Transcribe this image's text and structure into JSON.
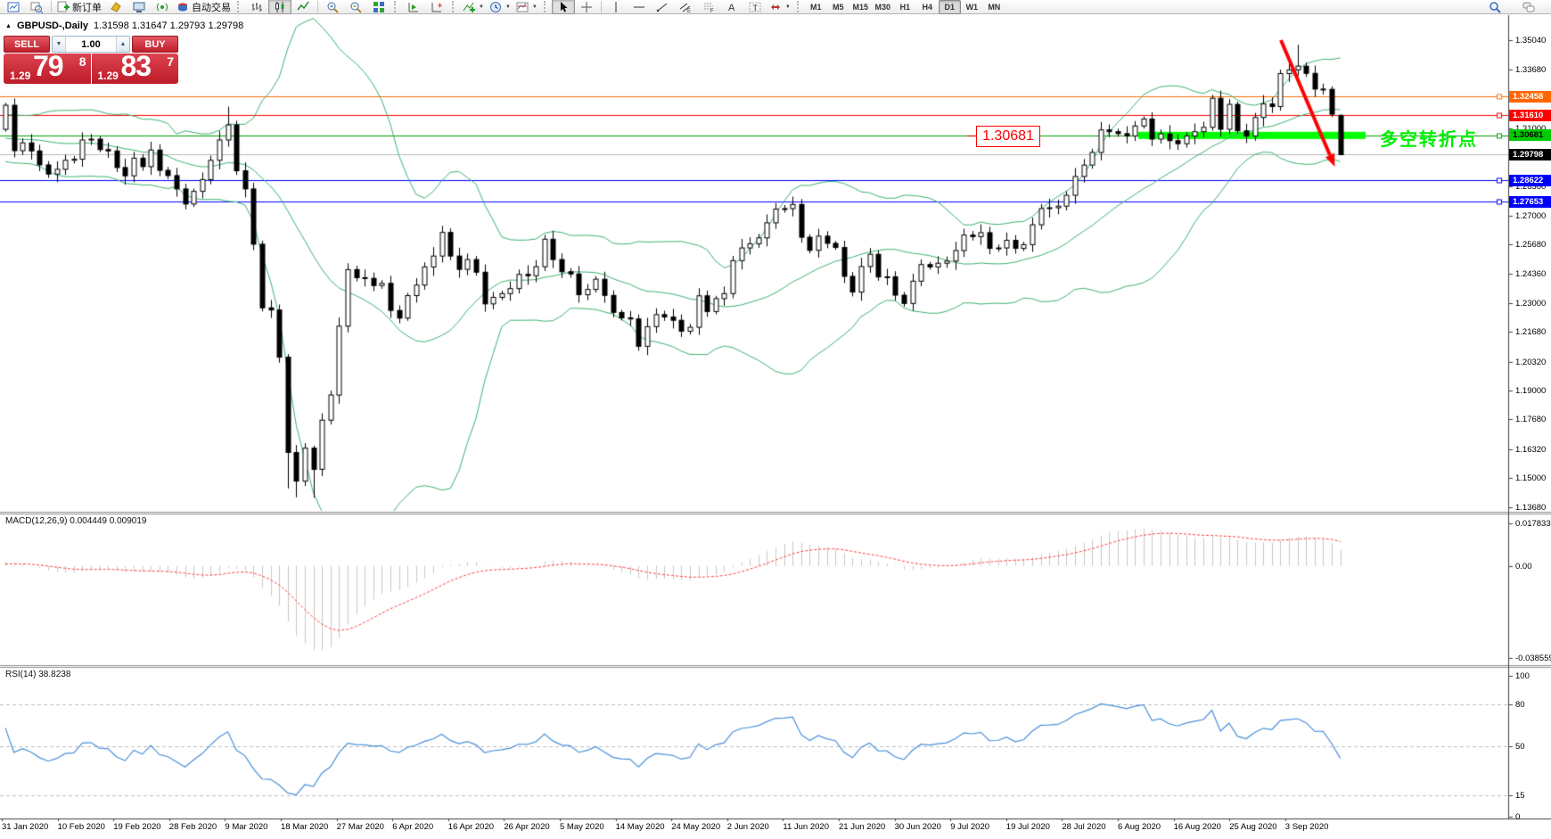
{
  "toolbar": {
    "left_items": [
      {
        "name": "new-chart",
        "type": "btn"
      },
      {
        "name": "profiles",
        "type": "btn"
      },
      {
        "type": "sep"
      },
      {
        "name": "new-order",
        "type": "btn",
        "label": "新订单"
      },
      {
        "name": "metaeditor",
        "type": "btn"
      },
      {
        "name": "terminal",
        "type": "btn"
      },
      {
        "name": "signals",
        "type": "btn"
      },
      {
        "name": "autotrading",
        "type": "btn",
        "label": "自动交易"
      },
      {
        "type": "grip"
      },
      {
        "name": "bar-chart",
        "type": "btn"
      },
      {
        "name": "candle-chart",
        "type": "btn",
        "active": true
      },
      {
        "name": "line-chart",
        "type": "btn"
      },
      {
        "type": "sep"
      },
      {
        "name": "zoom-in",
        "type": "btn"
      },
      {
        "name": "zoom-out",
        "type": "btn"
      },
      {
        "name": "tile-windows",
        "type": "btn"
      },
      {
        "type": "grip"
      },
      {
        "name": "auto-scroll",
        "type": "btn"
      },
      {
        "name": "chart-shift",
        "type": "btn"
      },
      {
        "type": "grip"
      },
      {
        "name": "indicators",
        "type": "btn",
        "dropdown": true
      },
      {
        "name": "periods",
        "type": "btn",
        "dropdown": true
      },
      {
        "name": "templates",
        "type": "btn",
        "dropdown": true
      },
      {
        "type": "grip"
      },
      {
        "name": "cursor",
        "type": "btn",
        "active": true
      },
      {
        "name": "crosshair",
        "type": "btn"
      },
      {
        "type": "sep"
      },
      {
        "name": "vertical-line",
        "type": "btn"
      },
      {
        "name": "horizontal-line",
        "type": "btn"
      },
      {
        "name": "trendline",
        "type": "btn"
      },
      {
        "name": "equidistant-channel",
        "type": "btn"
      },
      {
        "name": "fibonacci",
        "type": "btn"
      },
      {
        "name": "text",
        "type": "btn"
      },
      {
        "name": "text-label",
        "type": "btn"
      },
      {
        "name": "arrows",
        "type": "btn",
        "dropdown": true
      },
      {
        "type": "grip"
      }
    ],
    "timeframes": [
      "M1",
      "M5",
      "M15",
      "M30",
      "H1",
      "H4",
      "D1",
      "W1",
      "MN"
    ],
    "active_timeframe": "D1",
    "right_items": [
      {
        "name": "search"
      },
      {
        "name": "chat"
      }
    ]
  },
  "window": {
    "title_row": {
      "symbol": "GBPUSD-,Daily",
      "ohlc": "1.31598 1.31647 1.29793 1.29798"
    }
  },
  "trade_panel": {
    "sell_label": "SELL",
    "buy_label": "BUY",
    "volume": "1.00",
    "bid_small": "1.29",
    "bid_big": "79",
    "bid_sup": "8",
    "ask_small": "1.29",
    "ask_big": "83",
    "ask_sup": "7"
  },
  "chart_data": {
    "type": "candlestick",
    "symbol": "GBPUSD",
    "period": "Daily",
    "current_bar_ohlc": {
      "open": 1.31598,
      "high": 1.31647,
      "low": 1.29793,
      "close": 1.29798
    },
    "x_labels": [
      "31 Jan 2020",
      "10 Feb 2020",
      "19 Feb 2020",
      "28 Feb 2020",
      "9 Mar 2020",
      "18 Mar 2020",
      "27 Mar 2020",
      "6 Apr 2020",
      "16 Apr 2020",
      "26 Apr 2020",
      "5 May 2020",
      "14 May 2020",
      "24 May 2020",
      "2 Jun 2020",
      "11 Jun 2020",
      "21 Jun 2020",
      "30 Jun 2020",
      "9 Jul 2020",
      "19 Jul 2020",
      "28 Jul 2020",
      "6 Aug 2020",
      "16 Aug 2020",
      "25 Aug 2020",
      "3 Sep 2020"
    ],
    "y_axis": {
      "ylim": [
        1.13498,
        1.36182
      ],
      "ticks": [
        "1.35040",
        "1.33680",
        "1.32360",
        "1.31000",
        "1.29680",
        "1.28360",
        "1.27000",
        "1.25680",
        "1.24360",
        "1.23000",
        "1.21680",
        "1.20320",
        "1.19000",
        "1.17680",
        "1.16320",
        "1.15000",
        "1.13680"
      ]
    },
    "candles": {
      "lead_in_closes": [
        1.3042,
        1.3064,
        1.3085,
        1.3064,
        1.302,
        1.299,
        1.3012,
        1.3035,
        1.3009,
        1.2966,
        1.3004,
        1.304,
        1.3102,
        1.3114,
        1.3075,
        1.3041,
        1.3085,
        1.3109,
        1.3015,
        1.3048,
        1.3096
      ],
      "closes": [
        1.3206,
        1.2998,
        1.3034,
        1.2997,
        1.2933,
        1.2891,
        1.2913,
        1.2954,
        1.2959,
        1.3047,
        1.3051,
        1.3003,
        1.2997,
        1.2921,
        1.2883,
        1.2964,
        1.2925,
        1.3001,
        1.2908,
        1.2884,
        1.2823,
        1.2754,
        1.2812,
        1.2866,
        1.2954,
        1.3047,
        1.3116,
        1.2906,
        1.2823,
        1.257,
        1.2279,
        1.2269,
        1.2053,
        1.1617,
        1.1486,
        1.1637,
        1.154,
        1.1765,
        1.188,
        1.2195,
        1.2454,
        1.2417,
        1.2414,
        1.2381,
        1.2391,
        1.2267,
        1.2232,
        1.2335,
        1.2383,
        1.2466,
        1.2516,
        1.2624,
        1.2516,
        1.2455,
        1.25,
        1.2442,
        1.2297,
        1.2327,
        1.2344,
        1.2367,
        1.2432,
        1.2426,
        1.2467,
        1.2593,
        1.25,
        1.2444,
        1.2434,
        1.2339,
        1.2363,
        1.241,
        1.2336,
        1.2258,
        1.2233,
        1.2228,
        1.2103,
        1.2193,
        1.2248,
        1.2237,
        1.2222,
        1.2172,
        1.219,
        1.2334,
        1.2262,
        1.2321,
        1.2344,
        1.2495,
        1.2553,
        1.2572,
        1.2599,
        1.2668,
        1.2731,
        1.2733,
        1.2752,
        1.2602,
        1.2542,
        1.2607,
        1.2574,
        1.2555,
        1.2423,
        1.2351,
        1.2468,
        1.2524,
        1.242,
        1.2421,
        1.2337,
        1.2299,
        1.2401,
        1.2477,
        1.2466,
        1.2483,
        1.2493,
        1.2541,
        1.2612,
        1.2605,
        1.2623,
        1.2551,
        1.2553,
        1.2588,
        1.2551,
        1.2568,
        1.2659,
        1.2733,
        1.2737,
        1.2744,
        1.2794,
        1.288,
        1.2932,
        1.299,
        1.3093,
        1.3085,
        1.3076,
        1.3065,
        1.3111,
        1.3143,
        1.3051,
        1.3075,
        1.3044,
        1.303,
        1.3065,
        1.3085,
        1.3105,
        1.3238,
        1.3096,
        1.321,
        1.3089,
        1.3065,
        1.315,
        1.3212,
        1.32,
        1.3351,
        1.3368,
        1.3385,
        1.3352,
        1.328,
        1.3279,
        1.3165,
        1.29798
      ],
      "wick": 0.0028,
      "overrides": {
        "26": {
          "h": 1.32
        },
        "33": {
          "l": 1.1452
        },
        "34": {
          "l": 1.1412
        },
        "36": {
          "l": 1.141
        },
        "151": {
          "h": 1.3483
        },
        "156": {
          "o": 1.31598,
          "h": 1.31647,
          "l": 1.29793,
          "c": 1.29798
        }
      }
    },
    "bollinger": {
      "period": 20,
      "deviation": 2,
      "color": "#3cb371"
    },
    "macd": {
      "fast": 12,
      "slow": 26,
      "signal_period": 9,
      "label": "MACD(12,26,9) 0.004449 0.009019",
      "value": 0.004449,
      "signal_value": 0.009019,
      "ticks": [
        {
          "text": "0.017833",
          "v": 0.017833
        },
        {
          "text": "0.00",
          "v": 0
        },
        {
          "text": "-0.038559",
          "v": -0.038559
        }
      ],
      "ylim": [
        -0.041173,
        0.021567
      ],
      "hist_color": "#c8c8c8",
      "signal_color": "#ff4040"
    },
    "rsi": {
      "period": 14,
      "label": "RSI(14) 38.8238",
      "value": 38.8238,
      "ticks": [
        {
          "text": "100",
          "v": 100
        },
        {
          "text": "80",
          "v": 80
        },
        {
          "text": "50",
          "v": 50
        },
        {
          "text": "15",
          "v": 15
        },
        {
          "text": "0",
          "v": 0
        }
      ],
      "levels": [
        80,
        50,
        15
      ],
      "ylim": [
        -0.63,
        105.7
      ],
      "color": "#4a90d9"
    },
    "hlines": [
      {
        "price": 1.32458,
        "text": "1.32458",
        "line_color": "#ff7000",
        "badge_bg": "#ff6600",
        "badge_text": "#ffffff"
      },
      {
        "price": 1.3161,
        "text": "1.31610",
        "line_color": "#ff0000",
        "badge_bg": "#ff0000",
        "badge_text": "#ffffff"
      },
      {
        "price": 1.30681,
        "text": "1.30681",
        "line_color": "#00a000",
        "badge_bg": "#00cc00",
        "badge_text": "#000000"
      },
      {
        "price": 1.28622,
        "text": "1.28622",
        "line_color": "#0000ff",
        "badge_bg": "#0000ff",
        "badge_text": "#ffffff"
      },
      {
        "price": 1.27653,
        "text": "1.27653",
        "line_color": "#0000ff",
        "badge_bg": "#0000ff",
        "badge_text": "#ffffff"
      }
    ],
    "current_price": {
      "text": "1.29798",
      "value": 1.29798,
      "line_color": "#b8b8b8",
      "badge_bg": "#000000",
      "badge_text": "#ffffff"
    },
    "annotations": {
      "support_band": {
        "price": 1.3068,
        "x_from": 1277,
        "x_to": 1532,
        "color": "#00ff00",
        "thickness": 8
      },
      "price_flag": {
        "text": "1.30681"
      },
      "turning_text": {
        "text": "多空转折点"
      },
      "trend_arrow": {
        "from": [
          1437,
          45
        ],
        "to": [
          1492,
          174
        ],
        "color": "#ff0000",
        "width": 4
      }
    }
  }
}
